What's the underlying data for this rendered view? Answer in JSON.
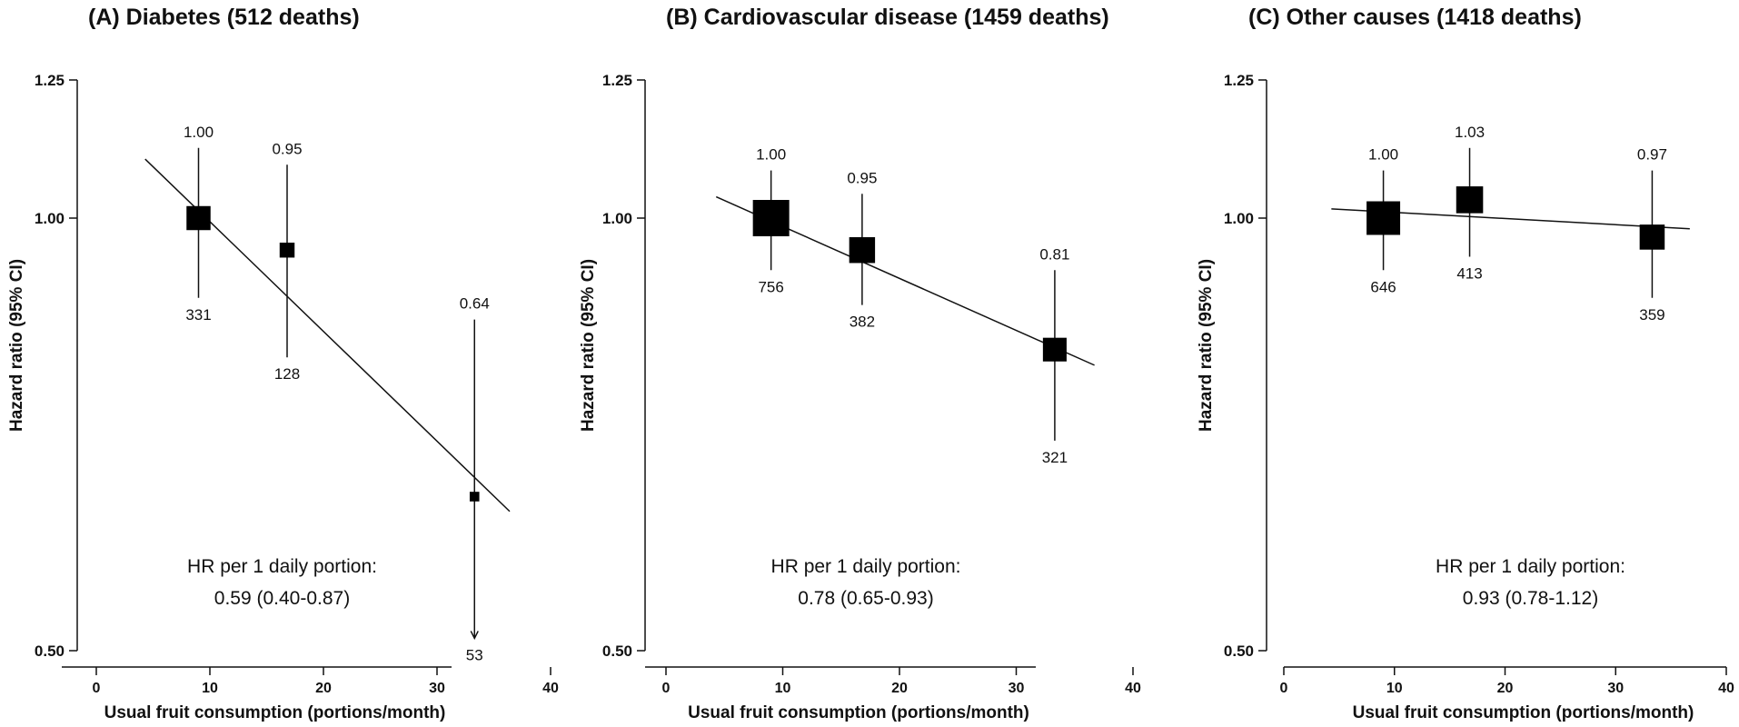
{
  "chart_data": [
    {
      "type": "scatter",
      "title": "(A)  Diabetes (512 deaths)",
      "xlabel": "Usual fruit consumption (portions/month)",
      "ylabel": "Hazard ratio (95% CI)",
      "xlim": [
        0,
        40
      ],
      "ylim": [
        0.5,
        1.25
      ],
      "y_scale": "log",
      "xticks": [
        "0",
        "10",
        "20",
        "30",
        "40"
      ],
      "yticks": [
        "1.25",
        "1.00",
        "0.50"
      ],
      "points": [
        {
          "x": 9,
          "hr": 1.0,
          "ci": [
            0.88,
            1.12
          ],
          "hr_label": "1.00",
          "deaths": "331",
          "deaths_value": 331
        },
        {
          "x": 16.8,
          "hr": 0.95,
          "ci": [
            0.8,
            1.09
          ],
          "hr_label": "0.95",
          "deaths": "128",
          "deaths_value": 128
        },
        {
          "x": 33.3,
          "hr": 0.64,
          "ci": [
            0.51,
            0.85
          ],
          "hr_label": "0.64",
          "deaths": "53",
          "deaths_value": 53,
          "lower_arrow": true
        }
      ],
      "trend": {
        "x": [
          4.3,
          36.4
        ],
        "y": [
          1.1,
          0.625
        ]
      },
      "annotation": [
        "HR per 1 daily portion:",
        "0.59 (0.40-0.87)"
      ]
    },
    {
      "type": "scatter",
      "title": "(B)  Cardiovascular disease (1459 deaths)",
      "xlabel": "Usual fruit consumption (portions/month)",
      "ylabel": "Hazard ratio (95% CI)",
      "xlim": [
        0,
        40
      ],
      "ylim": [
        0.5,
        1.25
      ],
      "y_scale": "log",
      "xticks": [
        "0",
        "10",
        "20",
        "30",
        "40"
      ],
      "yticks": [
        "1.25",
        "1.00",
        "0.50"
      ],
      "points": [
        {
          "x": 9,
          "hr": 1.0,
          "ci": [
            0.92,
            1.08
          ],
          "hr_label": "1.00",
          "deaths": "756",
          "deaths_value": 756
        },
        {
          "x": 16.8,
          "hr": 0.95,
          "ci": [
            0.87,
            1.04
          ],
          "hr_label": "0.95",
          "deaths": "382",
          "deaths_value": 382
        },
        {
          "x": 33.3,
          "hr": 0.81,
          "ci": [
            0.7,
            0.92
          ],
          "hr_label": "0.81",
          "deaths": "321",
          "deaths_value": 321
        }
      ],
      "trend": {
        "x": [
          4.3,
          36.7
        ],
        "y": [
          1.035,
          0.79
        ]
      },
      "annotation": [
        "HR per 1 daily portion:",
        "0.78 (0.65-0.93)"
      ]
    },
    {
      "type": "scatter",
      "title": "(C)  Other causes (1418 deaths)",
      "xlabel": "Usual fruit consumption (portions/month)",
      "ylabel": "Hazard ratio (95% CI)",
      "xlim": [
        0,
        40
      ],
      "ylim": [
        0.5,
        1.25
      ],
      "y_scale": "log",
      "xticks": [
        "0",
        "10",
        "20",
        "30",
        "40"
      ],
      "yticks": [
        "1.25",
        "1.00",
        "0.50"
      ],
      "points": [
        {
          "x": 9,
          "hr": 1.0,
          "ci": [
            0.92,
            1.08
          ],
          "hr_label": "1.00",
          "deaths": "646",
          "deaths_value": 646
        },
        {
          "x": 16.8,
          "hr": 1.03,
          "ci": [
            0.94,
            1.12
          ],
          "hr_label": "1.03",
          "deaths": "413",
          "deaths_value": 413
        },
        {
          "x": 33.3,
          "hr": 0.97,
          "ci": [
            0.88,
            1.08
          ],
          "hr_label": "0.97",
          "deaths": "359",
          "deaths_value": 359
        }
      ],
      "trend": {
        "x": [
          4.3,
          36.7
        ],
        "y": [
          1.015,
          0.983
        ]
      },
      "annotation": [
        "HR per 1 daily portion:",
        "0.93 (0.78-1.12)"
      ]
    }
  ]
}
